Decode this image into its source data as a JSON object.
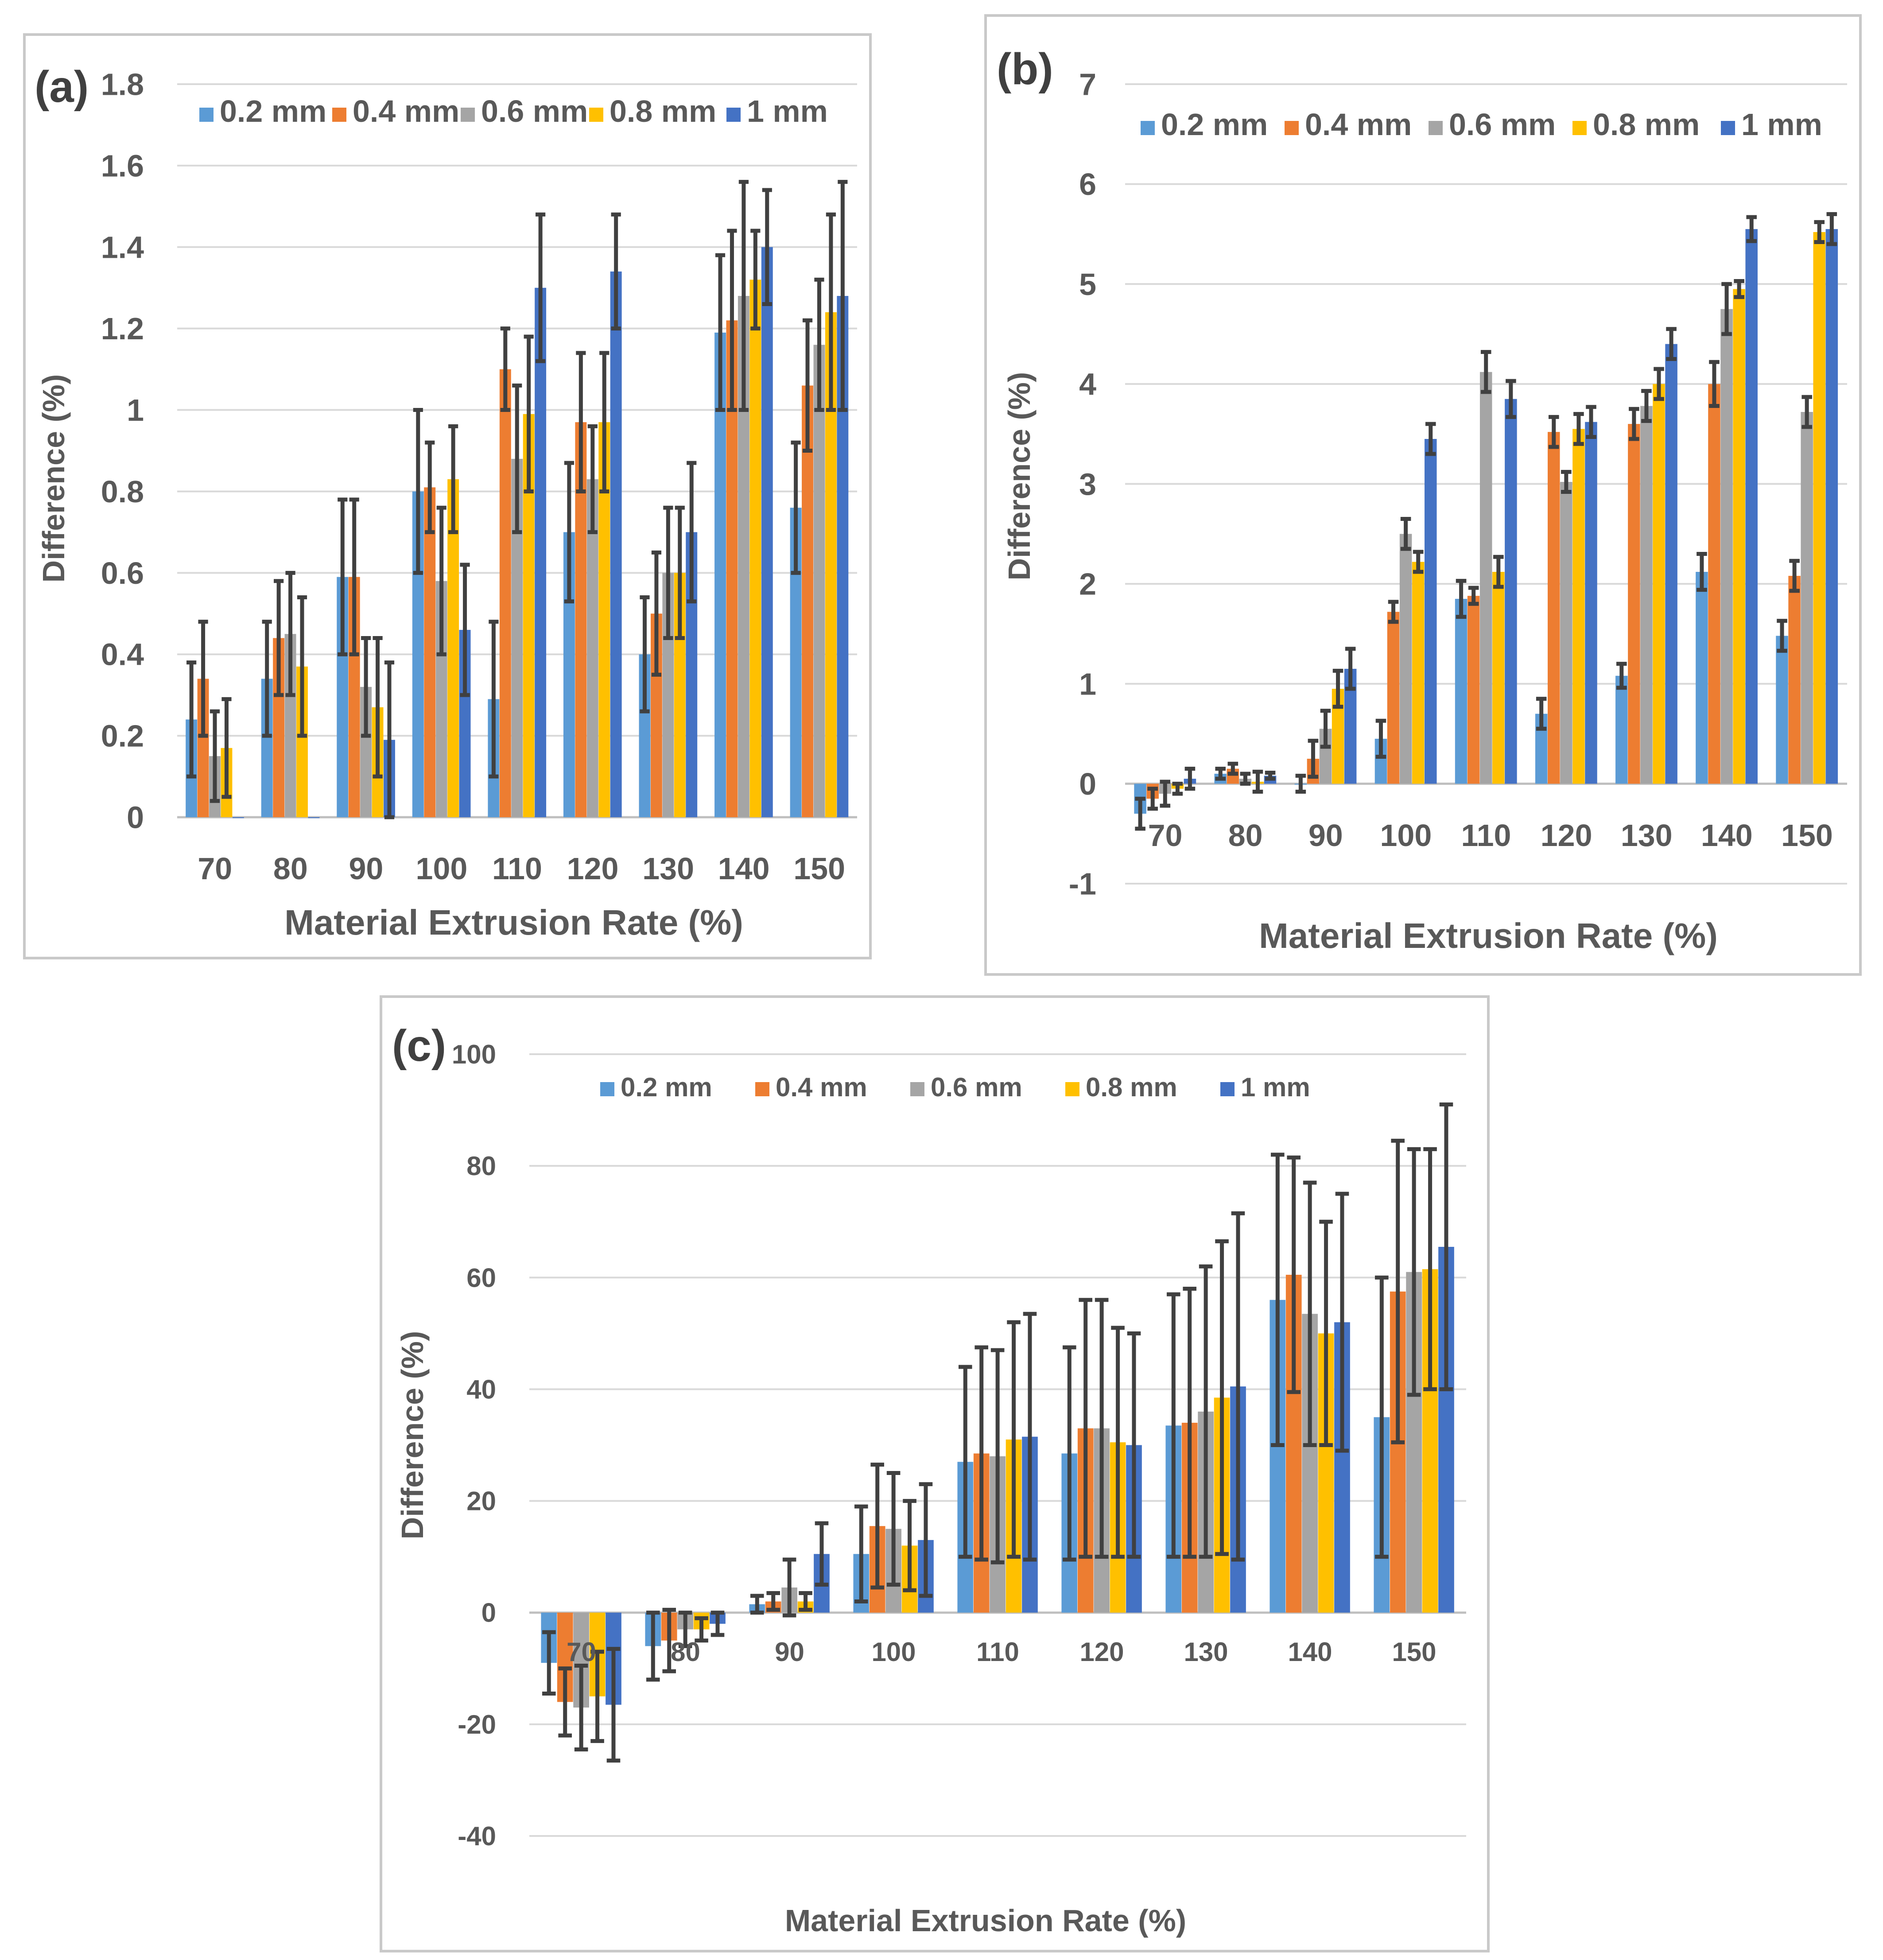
{
  "colors": {
    "s0": "#5b9bd5",
    "s1": "#ed7d31",
    "s2": "#a5a5a5",
    "s3": "#ffc000",
    "s4": "#4472c4"
  },
  "chart_data": [
    {
      "type": "bar",
      "panel": "(a)",
      "title": "",
      "xlabel": "Material Extrusion Rate (%)",
      "ylabel": "Difference (%)",
      "ylim": [
        0,
        1.8
      ],
      "yticks": [
        0,
        0.2,
        0.4,
        0.6,
        0.8,
        1,
        1.2,
        1.4,
        1.6,
        1.8
      ],
      "ytick_labels": [
        "0",
        "0.2",
        "0.4",
        "0.6",
        "0.8",
        "1",
        "1.2",
        "1.4",
        "1.6",
        "1.8"
      ],
      "categories": [
        "70",
        "80",
        "90",
        "100",
        "110",
        "120",
        "130",
        "140",
        "150"
      ],
      "legend_position": "top",
      "series": [
        {
          "name": "0.2 mm",
          "values": [
            0.24,
            0.34,
            0.59,
            0.8,
            0.29,
            0.7,
            0.4,
            1.19,
            0.76
          ],
          "errors": [
            0.14,
            0.14,
            0.19,
            0.2,
            0.19,
            0.17,
            0.14,
            0.19,
            0.16
          ]
        },
        {
          "name": "0.4 mm",
          "values": [
            0.34,
            0.44,
            0.59,
            0.81,
            1.1,
            0.97,
            0.5,
            1.22,
            1.06
          ],
          "errors": [
            0.14,
            0.14,
            0.19,
            0.11,
            0.1,
            0.17,
            0.15,
            0.22,
            0.16
          ]
        },
        {
          "name": "0.6 mm",
          "values": [
            0.15,
            0.45,
            0.32,
            0.58,
            0.88,
            0.83,
            0.6,
            1.28,
            1.16
          ],
          "errors": [
            0.11,
            0.15,
            0.12,
            0.18,
            0.18,
            0.13,
            0.16,
            0.28,
            0.16
          ]
        },
        {
          "name": "0.8 mm",
          "values": [
            0.17,
            0.37,
            0.27,
            0.83,
            0.99,
            0.97,
            0.6,
            1.32,
            1.24
          ],
          "errors": [
            0.12,
            0.17,
            0.17,
            0.13,
            0.19,
            0.17,
            0.16,
            0.12,
            0.24
          ]
        },
        {
          "name": "1 mm",
          "values": [
            0.0,
            0.0,
            0.19,
            0.46,
            1.3,
            1.34,
            0.7,
            1.4,
            1.28
          ],
          "errors": [
            0,
            0,
            0.19,
            0.16,
            0.18,
            0.14,
            0.17,
            0.14,
            0.28
          ]
        }
      ]
    },
    {
      "type": "bar",
      "panel": "(b)",
      "title": "",
      "xlabel": "Material Extrusion Rate (%)",
      "ylabel": "Difference (%)",
      "ylim": [
        -1,
        7
      ],
      "yticks": [
        -1,
        0,
        1,
        2,
        3,
        4,
        5,
        6,
        7
      ],
      "ytick_labels": [
        "-1",
        "0",
        "1",
        "2",
        "3",
        "4",
        "5",
        "6",
        "7"
      ],
      "categories": [
        "70",
        "80",
        "90",
        "100",
        "110",
        "120",
        "130",
        "140",
        "150"
      ],
      "legend_position": "top",
      "series": [
        {
          "name": "0.2 mm",
          "values": [
            -0.3,
            0.1,
            0.0,
            0.45,
            1.85,
            0.7,
            1.08,
            2.12,
            1.48
          ],
          "errors": [
            0.15,
            0.05,
            0.08,
            0.18,
            0.18,
            0.15,
            0.12,
            0.18,
            0.15
          ]
        },
        {
          "name": "0.4 mm",
          "values": [
            -0.15,
            0.15,
            0.25,
            1.72,
            1.88,
            3.52,
            3.6,
            4.0,
            2.08
          ],
          "errors": [
            0.1,
            0.05,
            0.18,
            0.1,
            0.08,
            0.15,
            0.15,
            0.22,
            0.15
          ]
        },
        {
          "name": "0.6 mm",
          "values": [
            -0.1,
            0.05,
            0.55,
            2.5,
            4.12,
            3.02,
            3.78,
            4.75,
            3.72
          ],
          "errors": [
            0.12,
            0.05,
            0.18,
            0.15,
            0.2,
            0.1,
            0.15,
            0.25,
            0.15
          ]
        },
        {
          "name": "0.8 mm",
          "values": [
            -0.05,
            0.02,
            0.95,
            2.22,
            2.12,
            3.55,
            4.0,
            4.95,
            5.52
          ],
          "errors": [
            0.05,
            0.1,
            0.18,
            0.1,
            0.15,
            0.15,
            0.15,
            0.08,
            0.1
          ]
        },
        {
          "name": "1 mm",
          "values": [
            0.05,
            0.08,
            1.15,
            3.45,
            3.85,
            3.62,
            4.4,
            5.55,
            5.55
          ],
          "errors": [
            0.1,
            0.03,
            0.2,
            0.15,
            0.18,
            0.15,
            0.15,
            0.12,
            0.15
          ]
        }
      ]
    },
    {
      "type": "bar",
      "panel": "(c)",
      "title": "",
      "xlabel": "Material Extrusion Rate (%)",
      "ylabel": "Difference (%)",
      "ylim": [
        -40,
        100
      ],
      "yticks": [
        -40,
        -20,
        0,
        20,
        40,
        60,
        80,
        100
      ],
      "ytick_labels": [
        "-40",
        "-20",
        "0",
        "20",
        "40",
        "60",
        "80",
        "100"
      ],
      "categories": [
        "70",
        "80",
        "90",
        "100",
        "110",
        "120",
        "130",
        "140",
        "150"
      ],
      "legend_position": "top",
      "series": [
        {
          "name": "0.2 mm",
          "values": [
            -9,
            -6,
            1.5,
            10.5,
            27,
            28.5,
            33.5,
            56,
            35
          ],
          "errors": [
            5.5,
            6,
            1.5,
            8.5,
            17,
            19,
            23.5,
            26,
            25
          ]
        },
        {
          "name": "0.4 mm",
          "values": [
            -16,
            -5,
            2,
            15.5,
            28.5,
            33,
            34,
            60.5,
            57.5
          ],
          "errors": [
            6,
            5.5,
            1.5,
            11,
            19,
            23,
            24,
            21,
            27
          ]
        },
        {
          "name": "0.6 mm",
          "values": [
            -17,
            -3,
            4.5,
            15,
            28,
            33,
            36,
            53.5,
            61
          ],
          "errors": [
            7.5,
            3,
            5,
            10,
            19,
            23,
            26,
            23.5,
            22
          ]
        },
        {
          "name": "0.8 mm",
          "values": [
            -15,
            -3,
            2,
            12,
            31,
            30.5,
            38.5,
            50,
            61.5
          ],
          "errors": [
            8,
            2,
            1.5,
            8,
            21,
            20.5,
            28,
            20,
            21.5
          ]
        },
        {
          "name": "1 mm",
          "values": [
            -16.5,
            -2,
            10.5,
            13,
            31.5,
            30,
            40.5,
            52,
            65.5
          ],
          "errors": [
            10,
            2,
            5.5,
            10,
            22,
            20,
            31,
            23,
            25.5
          ]
        }
      ]
    }
  ]
}
